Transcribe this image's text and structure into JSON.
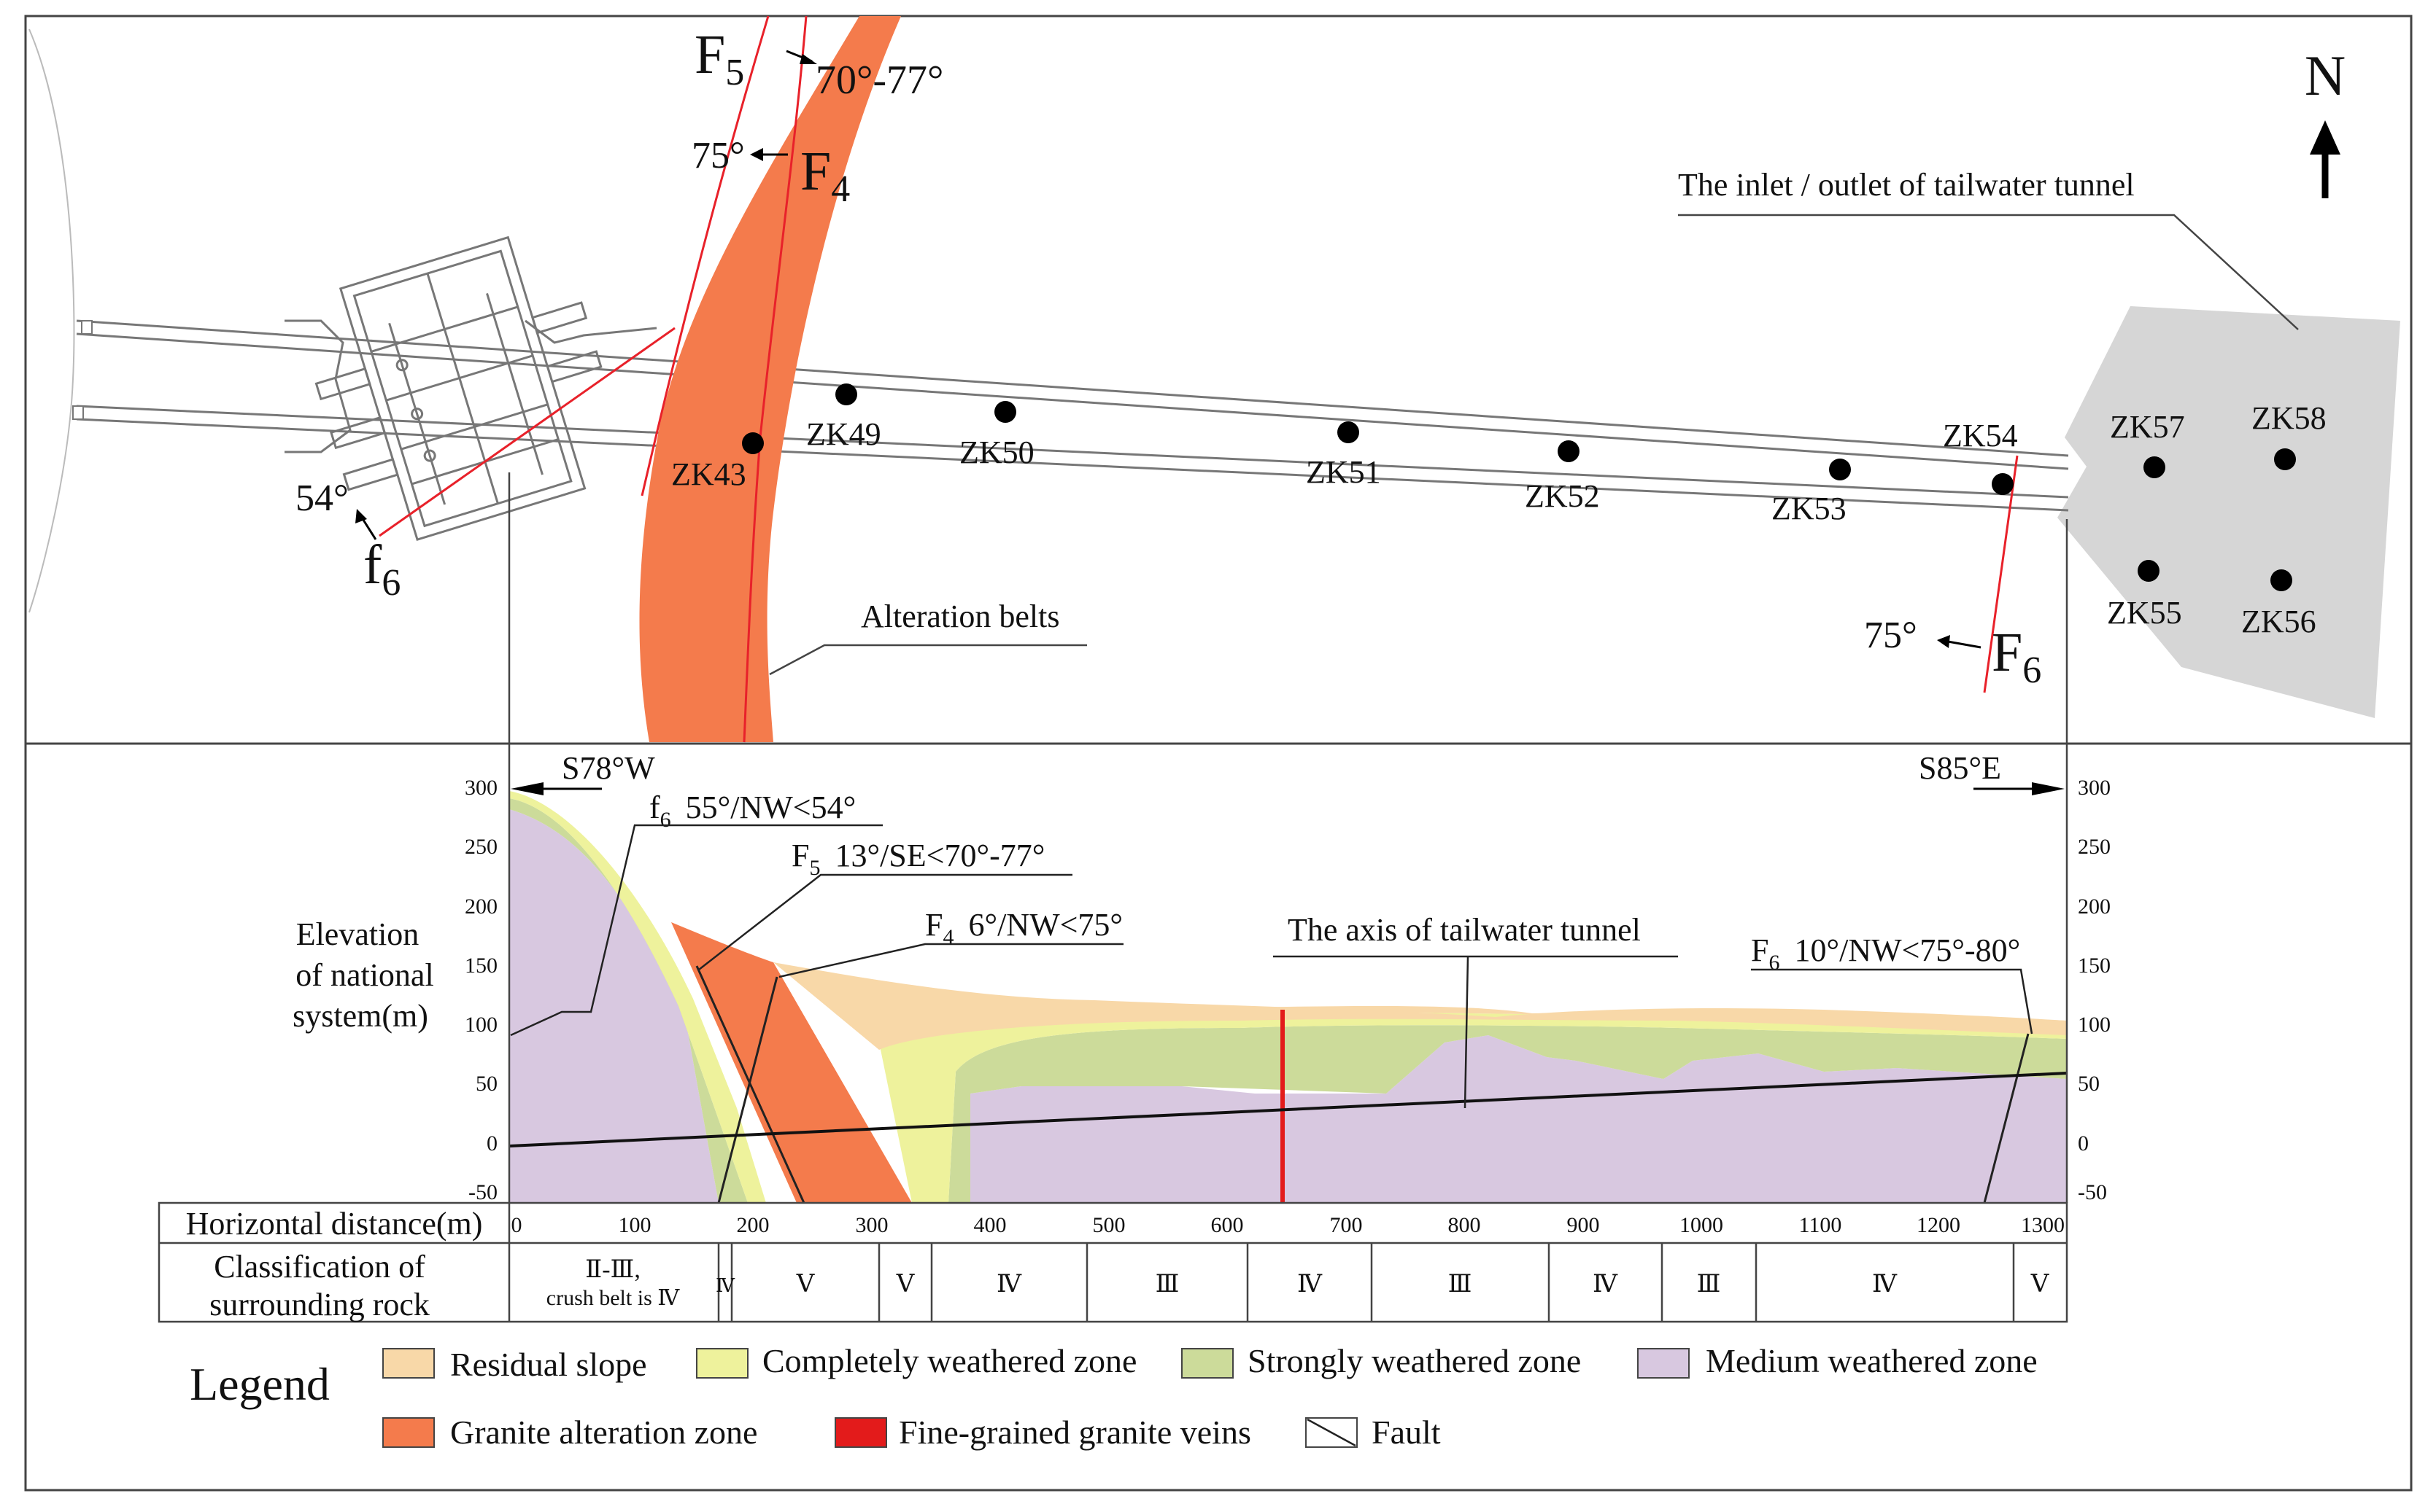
{
  "colors": {
    "residual": "#F8D8A8",
    "completely": "#EEF29C",
    "strongly": "#CCDB9A",
    "medium": "#D8C8E0",
    "alteration": "#F47B4C",
    "veins": "#E31B1B",
    "fault": "#E8212A",
    "outlet": "#D6D6D6"
  },
  "plan": {
    "north_label": "N",
    "outlet_label": "The inlet / outlet of tailwater tunnel",
    "alteration_label": "Alteration belts",
    "faults": {
      "F5": {
        "name": "F",
        "sub": "5",
        "angle": "70°-77°"
      },
      "F4": {
        "name": "F",
        "sub": "4",
        "angle": "75°"
      },
      "f6": {
        "name": "f",
        "sub": "6",
        "angle": "54°"
      },
      "F6": {
        "name": "F",
        "sub": "6",
        "angle": "75°"
      }
    },
    "boreholes": [
      "ZK43",
      "ZK49",
      "ZK50",
      "ZK51",
      "ZK52",
      "ZK53",
      "ZK54",
      "ZK57",
      "ZK58",
      "ZK55",
      "ZK56"
    ]
  },
  "section": {
    "left_direction": "S78°W",
    "right_direction": "S85°E",
    "elevation_title": [
      "Elevation",
      "of national",
      "system(m)"
    ],
    "elevation_ticks": [
      "300",
      "250",
      "200",
      "150",
      "100",
      "50",
      "0",
      "-50"
    ],
    "fault_labels": {
      "f6": {
        "name": "f",
        "sub": "6",
        "text": "55°/NW<54°"
      },
      "F5": {
        "name": "F",
        "sub": "5",
        "text": "13°/SE<70°-77°"
      },
      "F4": {
        "name": "F",
        "sub": "4",
        "text": "6°/NW<75°"
      },
      "F6": {
        "name": "F",
        "sub": "6",
        "text": "10°/NW<75°-80°"
      }
    },
    "axis_label": "The axis of tailwater tunnel"
  },
  "table": {
    "distance_label": "Horizontal distance(m)",
    "distance_ticks": [
      "0",
      "100",
      "200",
      "300",
      "400",
      "500",
      "600",
      "700",
      "800",
      "900",
      "1000",
      "1100",
      "1200",
      "1300"
    ],
    "class_label": [
      "Classification of",
      "surrounding rock"
    ],
    "classes": [
      {
        "label": "Ⅱ-Ⅲ,",
        "label2": "crush belt is Ⅳ"
      },
      {
        "label": "Ⅳ"
      },
      {
        "label": "Ⅴ"
      },
      {
        "label": "Ⅴ"
      },
      {
        "label": "Ⅳ"
      },
      {
        "label": "Ⅲ"
      },
      {
        "label": "Ⅳ"
      },
      {
        "label": "Ⅲ"
      },
      {
        "label": "Ⅳ"
      },
      {
        "label": "Ⅲ"
      },
      {
        "label": "Ⅳ"
      },
      {
        "label": "Ⅴ"
      }
    ]
  },
  "legend": {
    "title": "Legend",
    "items": [
      {
        "label": "Residual slope"
      },
      {
        "label": "Completely weathered zone"
      },
      {
        "label": "Strongly weathered zone"
      },
      {
        "label": "Medium weathered zone"
      },
      {
        "label": "Granite alteration zone"
      },
      {
        "label": "Fine-grained granite veins"
      },
      {
        "label": "Fault"
      }
    ]
  }
}
